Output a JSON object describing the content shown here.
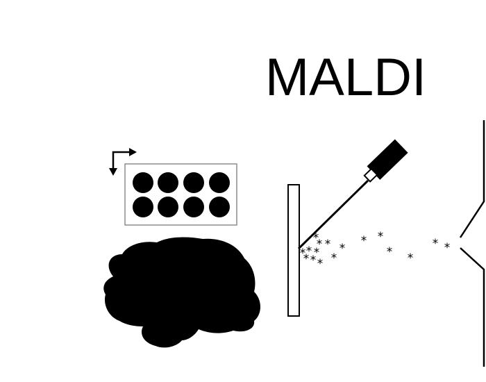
{
  "diagram": {
    "title": "MALDI",
    "colors": {
      "ink": "#000000",
      "background": "#ffffff",
      "plate_border": "#8c8c8c"
    },
    "icons": {
      "brain": "brain-silhouette-icon",
      "plate": "sample-plate-icon",
      "laser": "laser-icon",
      "inlet": "mass-spectrometer-inlet-icon",
      "arrow": "corner-arrow-icon"
    },
    "ion_symbol": "*"
  }
}
